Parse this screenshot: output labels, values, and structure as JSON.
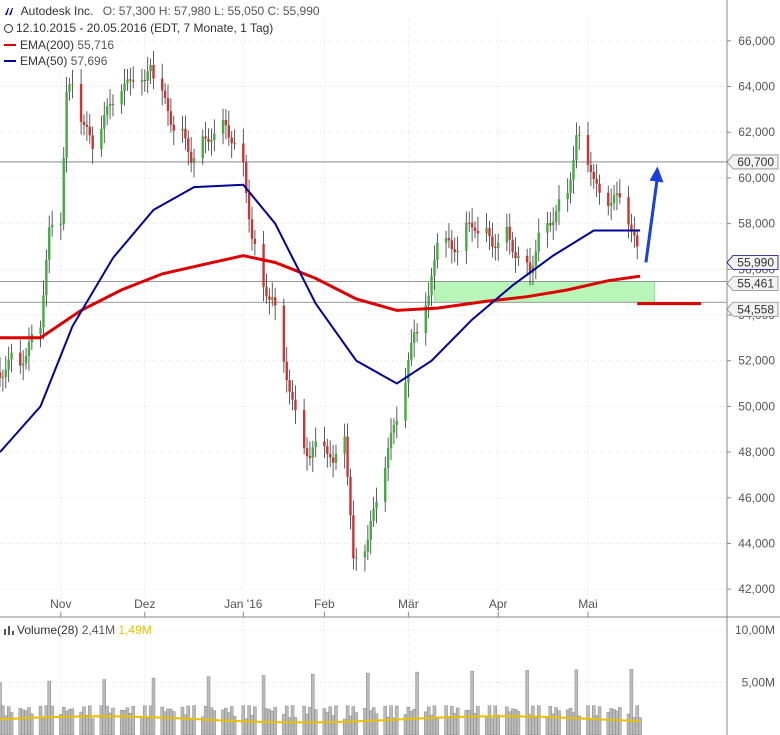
{
  "header": {
    "title": "Autodesk Inc.",
    "ohlc": "O: 57,300  H: 57,980  L: 55,050  C: 55,990",
    "period": "12.10.2015 - 20.05.2016 (EDT, 7 Monate, 1 Tag)",
    "ema200_label": "EMA(200)",
    "ema200_value": "55,716",
    "ema50_label": "EMA(50)",
    "ema50_value": "57,696",
    "volume_label": "Volume(28)",
    "volume_value": "2,41M",
    "volume_avg": "1,49M"
  },
  "colors": {
    "ema200": "#dd0000",
    "ema50": "#000099",
    "up": "#44aa44",
    "down": "#cc3333",
    "wick": "#333333",
    "zone": "#b8f5b8",
    "arrow": "#1a3fe0",
    "volume_bar": "#bbbbbb",
    "volume_avg": "#e8c000",
    "grid": "#dddddd"
  },
  "chart_data": {
    "type": "candlestick",
    "title": "Autodesk Inc.",
    "ylim": [
      41000,
      67000
    ],
    "y_ticks": [
      "66,000",
      "64,000",
      "62,000",
      "60,000",
      "58,000",
      "56,000",
      "54,000",
      "52,000",
      "50,000",
      "48,000",
      "46,000",
      "44,000",
      "42,000"
    ],
    "y_tick_values": [
      66000,
      64000,
      62000,
      60000,
      58000,
      56000,
      54000,
      52000,
      50000,
      48000,
      46000,
      44000,
      42000
    ],
    "x_ticks": [
      "Nov",
      "Dez",
      "Jan '16",
      "Feb",
      "Mär",
      "Apr",
      "Mai"
    ],
    "x_tick_dates": [
      "2015-11-02",
      "2015-12-01",
      "2016-01-04",
      "2016-02-01",
      "2016-03-01",
      "2016-04-01",
      "2016-05-02"
    ],
    "price_labels": [
      {
        "text": "60,700",
        "value": 60700,
        "style": "gray"
      },
      {
        "text": "55,990",
        "value": 55990,
        "style": "blue"
      },
      {
        "text": "55,461",
        "value": 55461,
        "style": "gray"
      },
      {
        "text": "54,558",
        "value": 54558,
        "style": "gray"
      }
    ],
    "horizontal_lines": [
      60700,
      55461,
      54558
    ],
    "support_zone": {
      "from": "2016-03-10",
      "to": "2016-05-25",
      "low": 54558,
      "high": 55461
    },
    "support_line": {
      "from": "2016-05-19",
      "to": "2016-06-10",
      "value": 54500
    },
    "arrow": {
      "from_date": "2016-05-22",
      "from_value": 56300,
      "to_date": "2016-05-26",
      "to_value": 60500
    },
    "close_series": [
      {
        "date": "2015-10-12",
        "value": 51500
      },
      {
        "date": "2015-10-16",
        "value": 52000
      },
      {
        "date": "2015-10-21",
        "value": 52200
      },
      {
        "date": "2015-10-26",
        "value": 53800
      },
      {
        "date": "2015-10-29",
        "value": 57500
      },
      {
        "date": "2015-11-02",
        "value": 58300
      },
      {
        "date": "2015-11-04",
        "value": 63500
      },
      {
        "date": "2015-11-06",
        "value": 64000
      },
      {
        "date": "2015-11-10",
        "value": 62200
      },
      {
        "date": "2015-11-13",
        "value": 61300
      },
      {
        "date": "2015-11-17",
        "value": 62500
      },
      {
        "date": "2015-11-20",
        "value": 63400
      },
      {
        "date": "2015-11-24",
        "value": 63800
      },
      {
        "date": "2015-11-27",
        "value": 64500
      },
      {
        "date": "2015-12-01",
        "value": 63900
      },
      {
        "date": "2015-12-03",
        "value": 65100
      },
      {
        "date": "2015-12-07",
        "value": 63500
      },
      {
        "date": "2015-12-10",
        "value": 62600
      },
      {
        "date": "2015-12-14",
        "value": 61800
      },
      {
        "date": "2015-12-17",
        "value": 61000
      },
      {
        "date": "2015-12-21",
        "value": 61500
      },
      {
        "date": "2015-12-24",
        "value": 62000
      },
      {
        "date": "2015-12-29",
        "value": 62400
      },
      {
        "date": "2016-01-04",
        "value": 60600
      },
      {
        "date": "2016-01-07",
        "value": 57500
      },
      {
        "date": "2016-01-11",
        "value": 55300
      },
      {
        "date": "2016-01-14",
        "value": 54800
      },
      {
        "date": "2016-01-19",
        "value": 51500
      },
      {
        "date": "2016-01-22",
        "value": 49500
      },
      {
        "date": "2016-01-27",
        "value": 47800
      },
      {
        "date": "2016-02-01",
        "value": 48600
      },
      {
        "date": "2016-02-04",
        "value": 47200
      },
      {
        "date": "2016-02-08",
        "value": 49000
      },
      {
        "date": "2016-02-11",
        "value": 43000
      },
      {
        "date": "2016-02-16",
        "value": 44100
      },
      {
        "date": "2016-02-19",
        "value": 45800
      },
      {
        "date": "2016-02-24",
        "value": 48500
      },
      {
        "date": "2016-02-29",
        "value": 51000
      },
      {
        "date": "2016-03-03",
        "value": 53200
      },
      {
        "date": "2016-03-08",
        "value": 54500
      },
      {
        "date": "2016-03-11",
        "value": 57500
      },
      {
        "date": "2016-03-16",
        "value": 56800
      },
      {
        "date": "2016-03-21",
        "value": 57700
      },
      {
        "date": "2016-03-24",
        "value": 58000
      },
      {
        "date": "2016-03-30",
        "value": 57200
      },
      {
        "date": "2016-04-04",
        "value": 57600
      },
      {
        "date": "2016-04-07",
        "value": 56800
      },
      {
        "date": "2016-04-12",
        "value": 56000
      },
      {
        "date": "2016-04-15",
        "value": 57500
      },
      {
        "date": "2016-04-20",
        "value": 58400
      },
      {
        "date": "2016-04-25",
        "value": 59500
      },
      {
        "date": "2016-04-28",
        "value": 61800
      },
      {
        "date": "2016-05-03",
        "value": 60600
      },
      {
        "date": "2016-05-06",
        "value": 59000
      },
      {
        "date": "2016-05-11",
        "value": 59200
      },
      {
        "date": "2016-05-16",
        "value": 58300
      },
      {
        "date": "2016-05-18",
        "value": 57300
      },
      {
        "date": "2016-05-20",
        "value": 55990
      }
    ],
    "ema200": [
      {
        "date": "2015-10-12",
        "value": 53000
      },
      {
        "date": "2015-10-26",
        "value": 53000
      },
      {
        "date": "2015-11-09",
        "value": 54200
      },
      {
        "date": "2015-11-23",
        "value": 55100
      },
      {
        "date": "2015-12-07",
        "value": 55800
      },
      {
        "date": "2015-12-21",
        "value": 56200
      },
      {
        "date": "2016-01-04",
        "value": 56600
      },
      {
        "date": "2016-01-15",
        "value": 56300
      },
      {
        "date": "2016-01-29",
        "value": 55600
      },
      {
        "date": "2016-02-12",
        "value": 54700
      },
      {
        "date": "2016-02-26",
        "value": 54200
      },
      {
        "date": "2016-03-11",
        "value": 54300
      },
      {
        "date": "2016-03-28",
        "value": 54600
      },
      {
        "date": "2016-04-11",
        "value": 54800
      },
      {
        "date": "2016-04-25",
        "value": 55100
      },
      {
        "date": "2016-05-09",
        "value": 55500
      },
      {
        "date": "2016-05-20",
        "value": 55700
      }
    ],
    "ema50": [
      {
        "date": "2015-10-12",
        "value": 48000
      },
      {
        "date": "2015-10-26",
        "value": 50000
      },
      {
        "date": "2015-11-06",
        "value": 53500
      },
      {
        "date": "2015-11-20",
        "value": 56500
      },
      {
        "date": "2015-12-04",
        "value": 58600
      },
      {
        "date": "2015-12-18",
        "value": 59600
      },
      {
        "date": "2016-01-04",
        "value": 59700
      },
      {
        "date": "2016-01-15",
        "value": 58000
      },
      {
        "date": "2016-01-29",
        "value": 54500
      },
      {
        "date": "2016-02-12",
        "value": 52000
      },
      {
        "date": "2016-02-26",
        "value": 51000
      },
      {
        "date": "2016-03-09",
        "value": 52000
      },
      {
        "date": "2016-03-23",
        "value": 53800
      },
      {
        "date": "2016-04-06",
        "value": 55300
      },
      {
        "date": "2016-04-20",
        "value": 56600
      },
      {
        "date": "2016-05-04",
        "value": 57700
      },
      {
        "date": "2016-05-20",
        "value": 57700
      }
    ],
    "volume": {
      "ylim": [
        0,
        10000000
      ],
      "y_ticks": [
        "10,00M",
        "5,00M"
      ],
      "y_tick_values": [
        10000000,
        5000000
      ],
      "average_level": 1490000,
      "last_value": 2410000
    }
  }
}
